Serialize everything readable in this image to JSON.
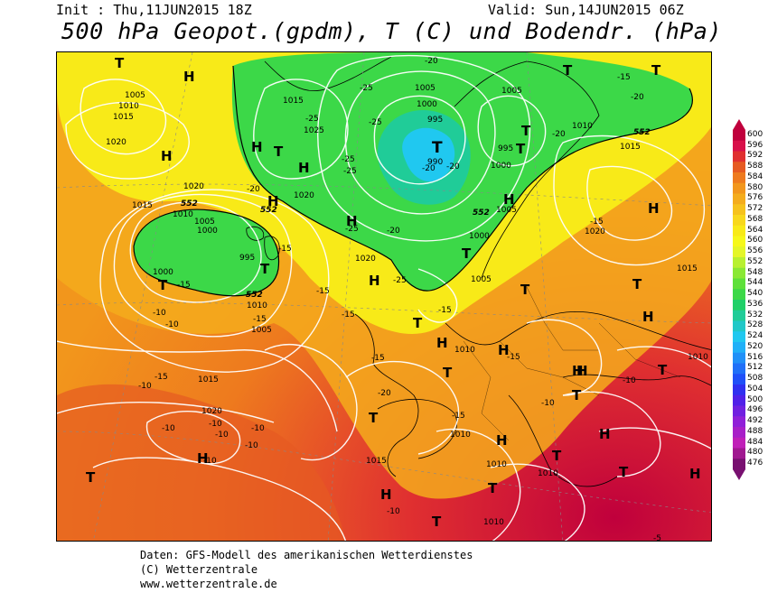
{
  "header": {
    "init": "Init : Thu,11JUN2015 18Z",
    "valid": "Valid: Sun,14JUN2015 06Z",
    "title": "500 hPa Geopot.(gpdm), T (C) und Bodendr. (hPa)"
  },
  "legend": {
    "levels": [
      "600",
      "596",
      "592",
      "588",
      "584",
      "580",
      "576",
      "572",
      "568",
      "564",
      "560",
      "556",
      "552",
      "548",
      "544",
      "540",
      "536",
      "532",
      "528",
      "524",
      "520",
      "516",
      "512",
      "508",
      "504",
      "500",
      "496",
      "492",
      "488",
      "484",
      "480",
      "476"
    ],
    "colors": [
      "#c0003c",
      "#d8104a",
      "#e03030",
      "#e65a22",
      "#ee7a1e",
      "#f2961c",
      "#f4ac1c",
      "#f6c21c",
      "#f8d81c",
      "#f8ea18",
      "#f6f81a",
      "#e4f628",
      "#b8f030",
      "#8ae834",
      "#5ee03a",
      "#3cd848",
      "#20d068",
      "#20cc98",
      "#20c8c8",
      "#20c8f0",
      "#20b0f8",
      "#2090f8",
      "#2070f8",
      "#2050f8",
      "#3030f0",
      "#5020e8",
      "#7020e0",
      "#9020d8",
      "#a820c8",
      "#c020b8",
      "#a01890",
      "#781070"
    ]
  },
  "map_labels": {
    "highs": [
      "H",
      "H",
      "H",
      "H",
      "H",
      "H",
      "H",
      "H",
      "H",
      "H",
      "H",
      "H",
      "H",
      "H",
      "H",
      "H",
      "H",
      "H",
      "H"
    ],
    "lows": [
      "T",
      "T",
      "T",
      "T",
      "T",
      "T",
      "T",
      "T",
      "T",
      "T",
      "T",
      "T",
      "T",
      "T",
      "T",
      "T",
      "T",
      "T",
      "T",
      "T",
      "T",
      "T"
    ],
    "isobars": [
      "1005",
      "1010",
      "1015",
      "1020",
      "1015",
      "1020",
      "1010",
      "1005",
      "1000",
      "995",
      "1015",
      "1025",
      "1020",
      "1005",
      "1000",
      "995",
      "990",
      "1005",
      "1000",
      "995",
      "1010",
      "1020",
      "1015",
      "1020",
      "1005",
      "1000",
      "1000",
      "1005",
      "1015",
      "1010",
      "1010",
      "1005",
      "1015",
      "1020",
      "1015",
      "1010",
      "1010",
      "1010",
      "1010",
      "1010"
    ],
    "temps": [
      "-20",
      "-25",
      "-25",
      "-25",
      "-20",
      "-25",
      "-20",
      "-25",
      "-20",
      "-20",
      "-20",
      "-15",
      "-20",
      "-25",
      "-15",
      "-25",
      "-15",
      "-15",
      "-15",
      "-15",
      "-10",
      "-10",
      "-15",
      "-15",
      "-15",
      "-15",
      "-20",
      "-15",
      "-10",
      "-10",
      "-10",
      "-10",
      "-10",
      "-10",
      "-10",
      "-10",
      "-15",
      "-10",
      "-10",
      "-5"
    ],
    "geopot": [
      "552",
      "552",
      "552",
      "552",
      "552"
    ]
  },
  "footer": {
    "line1": "Daten: GFS-Modell des amerikanischen Wetterdienstes",
    "line2": "(C) Wetterzentrale",
    "line3": "www.wetterzentrale.de"
  }
}
